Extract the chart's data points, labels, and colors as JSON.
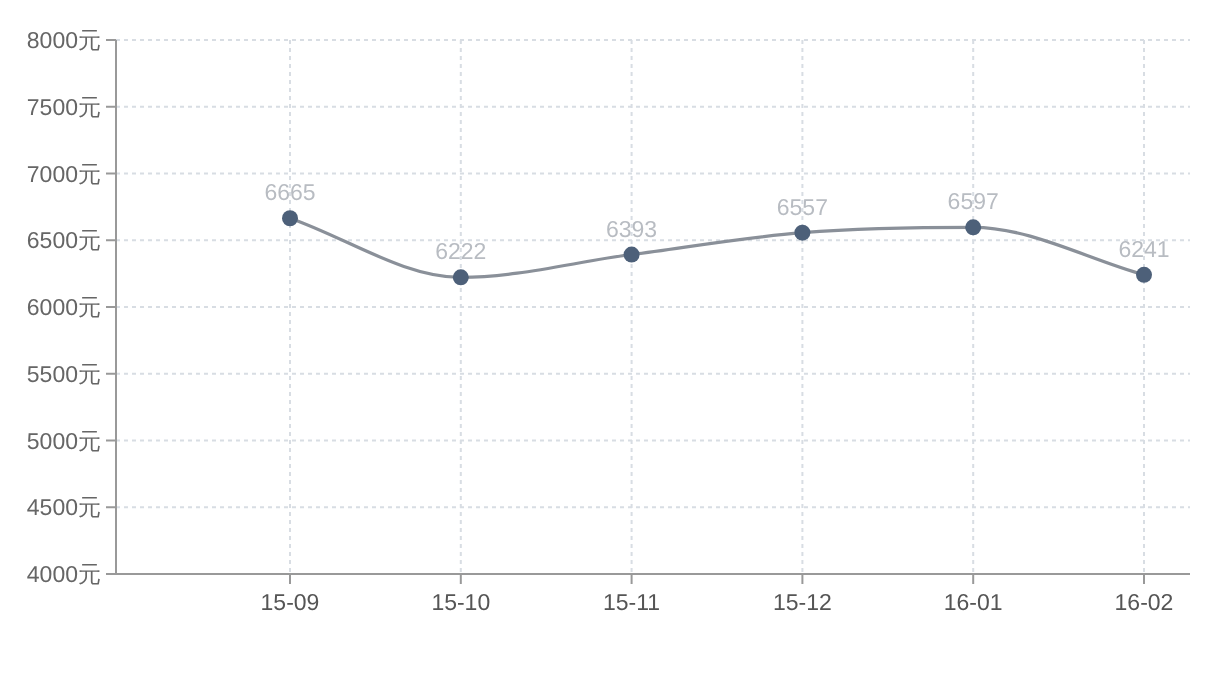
{
  "chart_data": {
    "type": "line",
    "categories": [
      "15-09",
      "15-10",
      "15-11",
      "15-12",
      "16-01",
      "16-02"
    ],
    "series": [
      {
        "color": "#8a9099",
        "values": [
          6665,
          6222,
          6393,
          6557,
          6597,
          6241
        ]
      }
    ],
    "ylim": [
      4000,
      8000
    ],
    "yticks": [
      {
        "value": 4000,
        "label": "4000元"
      },
      {
        "value": 4500,
        "label": "4500元"
      },
      {
        "value": 5000,
        "label": "5000元"
      },
      {
        "value": 5500,
        "label": "5500元"
      },
      {
        "value": 6000,
        "label": "6000元"
      },
      {
        "value": 6500,
        "label": "6500元"
      },
      {
        "value": 7000,
        "label": "7000元"
      },
      {
        "value": 7500,
        "label": "7500元"
      },
      {
        "value": 8000,
        "label": "8000元"
      }
    ],
    "grid": true,
    "marker": "circle",
    "line_style": "solid",
    "data_labels": true
  }
}
